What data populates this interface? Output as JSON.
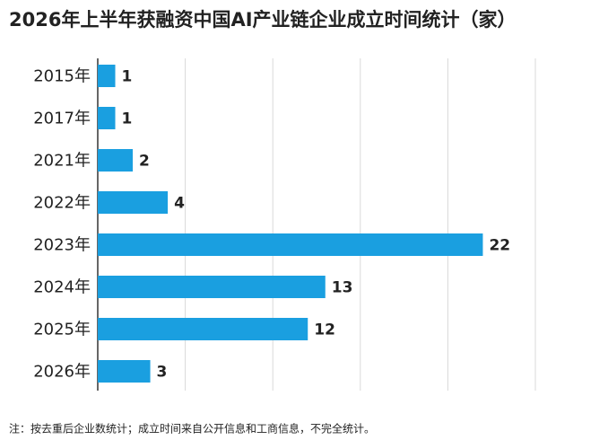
{
  "chart_data": {
    "type": "hbar",
    "title": "2026年上半年获融资中国AI产业链企业成立时间统计（家）",
    "categories": [
      "2015年",
      "2017年",
      "2021年",
      "2022年",
      "2023年",
      "2024年",
      "2025年",
      "2026年"
    ],
    "values": [
      1,
      1,
      2,
      4,
      22,
      13,
      12,
      3
    ],
    "color": "#1a9fe0",
    "xlim": [
      0,
      25
    ],
    "xticks": [
      0,
      5,
      10,
      15,
      20,
      25
    ],
    "grid": true,
    "note": "注：按去重后企业数统计；成立时间来自公开信息和工商信息，不完全统计。"
  }
}
